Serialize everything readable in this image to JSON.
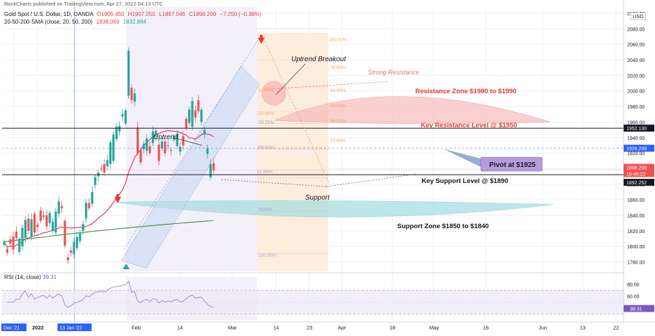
{
  "header": {
    "publisher": "RockCharts published on TradingView.com, Apr 27, 2022 04:13 UTC",
    "symbol": "Gold Spot / U.S. Dollar, 1D, OANDA",
    "ohlc": {
      "o": "O1905.450",
      "h": "H1907.050",
      "l": "L1897.046",
      "c": "C1898.200",
      "chg": "−7.250 (−0.38%)"
    },
    "sma_label": "20-50-200-SMA (close, 20, 50, 200)",
    "sma_values": [
      "1938.069",
      "1832.884"
    ],
    "rsi_label": "RSI (14, close)",
    "rsi_value": "39.31",
    "currency": "USD"
  },
  "colors": {
    "up": "#26a69a",
    "down": "#ef5350",
    "sma20": "#e91e63",
    "sma50": "#388e3c",
    "resistance_zone": "#f8bbbb",
    "support_zone": "#a9dde0",
    "channel": "#c5d8f2",
    "fib": "#fce7cf",
    "time_zone": "#ece6f7",
    "pivot_box": "#b39ddb",
    "rsi": "#9c8fd1"
  },
  "chart_data": {
    "type": "candlestick",
    "y_axis": {
      "range": [
        1768,
        2108
      ],
      "ticks": [
        1780,
        1800,
        1820,
        1840,
        1860,
        1880,
        1900,
        1920,
        1940,
        1960,
        1980,
        2000,
        2020,
        2040,
        2060,
        2080,
        2100
      ]
    },
    "x_axis": {
      "labels": [
        "Dec '21",
        "2022",
        "13 Jan '22",
        "Feb",
        "14",
        "Mar",
        "14",
        "23",
        "Apr",
        "18",
        "May",
        "16",
        "Jun",
        "13",
        "22"
      ]
    },
    "candles": [
      [
        1802,
        1806,
        1797,
        1792,
        1809,
        1804,
        1813,
        1796,
        1819,
        1811,
        1793,
        1810,
        1800,
        1824,
        1811,
        1834,
        1836,
        1820,
        1812,
        1835,
        1842,
        1818,
        1828,
        1825,
        1846,
        1833,
        1840,
        1838,
        1840,
        1826,
        1830,
        1843,
        1820,
        1832,
        1818,
        1845,
        1842,
        1858,
        1852,
        1849,
        1833,
        1801,
        1786,
        1782,
        1795,
        1792,
        1790,
        1806,
        1798,
        1812,
        1807,
        1818,
        1820,
        1829,
        1836,
        1856,
        1856,
        1849,
        1855,
        1870,
        1879,
        1889,
        1890,
        1895,
        1900,
        1899,
        1906,
        1895,
        1903,
        1911,
        1906,
        1934,
        1910,
        1944,
        1938,
        1954,
        1948,
        1955,
        1967,
        1970,
        1958,
        1975,
        1994,
        2052,
        2004,
        1988,
        1986,
        1997,
        1953,
        1920,
        1924,
        1908,
        1925,
        1932,
        1923,
        1939,
        1929,
        1920,
        1933,
        1948,
        1941,
        1949,
        1931,
        1910,
        1926,
        1935,
        1935,
        1920,
        1929,
        1930,
        1924,
        1923,
        1937,
        1940,
        1929,
        1945,
        1922,
        1928,
        1942,
        1930,
        1964,
        1952,
        1959,
        1976,
        1954,
        1987,
        1975,
        1966,
        1988,
        1974,
        1960,
        1976,
        1944,
        1950,
        1919,
        1926,
        1889,
        1906,
        1907,
        1898
      ],
      "open-close pairs per candle (oldest to newest)"
    ],
    "price_tags": [
      "1952.130",
      "1926.299",
      "1898.200",
      "16:46:22",
      "1892.252"
    ],
    "rsi": {
      "range": [
        20,
        90
      ],
      "ticks": [
        40,
        60,
        80
      ]
    }
  },
  "annotations": {
    "uptrend_breakout": "Uptrend Breakout",
    "strong_resistance": "Strong Resistance",
    "resistance_zone": "Resistance Zone $1980 to $1990",
    "key_resistance": "Key Resistance Level @ $1950",
    "uptrend": "Uptrend",
    "pivot": "Pivot at $1925",
    "key_support": "Key Support Level @ $1890",
    "support": "Support",
    "support_zone": "Support Zone $1850 to $1840"
  },
  "fib_labels": [
    "100.00%",
    "78.60%",
    "61.80%",
    "50.00%",
    "38.20%",
    "23.60%",
    "61.80%",
    "50.00%",
    "38.20%",
    "23.60%",
    "61.80%",
    "78.60%",
    "100.00%"
  ]
}
